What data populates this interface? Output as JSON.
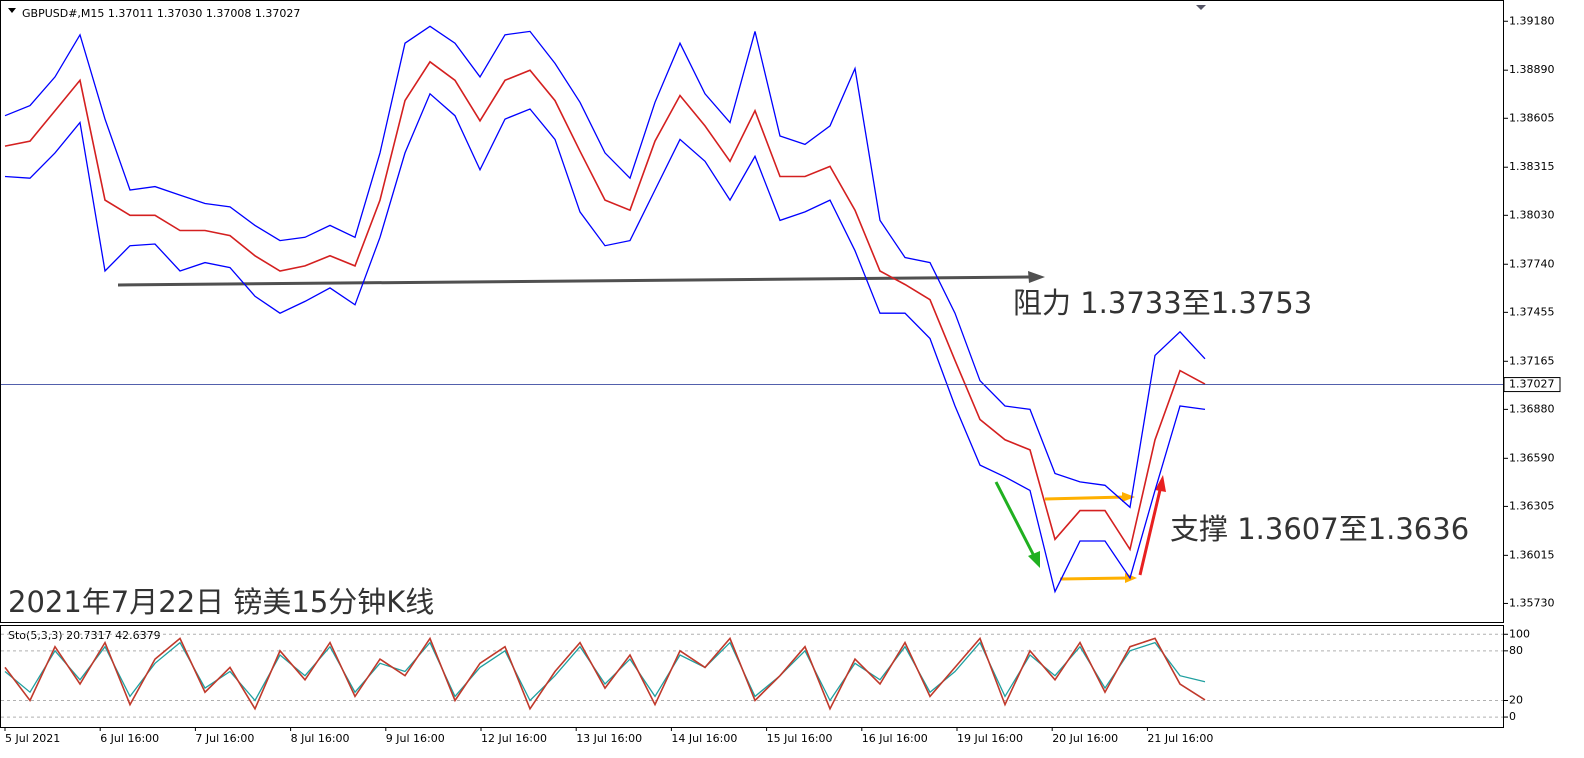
{
  "chart_data": [
    {
      "type": "line",
      "title": "GBPUSD#,M15  1.37011 1.37030 1.37008 1.37027",
      "ylim": [
        1.3562,
        1.393
      ],
      "yticks": [
        {
          "value": 1.3918,
          "label": "1.39180"
        },
        {
          "value": 1.3889,
          "label": "1.38890"
        },
        1.38605,
        1.38315,
        {
          "value": 1.3803,
          "label": "1.38030"
        },
        {
          "value": 1.3774,
          "label": "1.37740"
        },
        1.37455,
        1.37165,
        {
          "value": 1.3688,
          "label": "1.36880"
        },
        {
          "value": 1.3659,
          "label": "1.36590"
        },
        1.36305,
        1.36015,
        {
          "value": 1.3573,
          "label": "1.35730"
        }
      ],
      "grid": false,
      "last_price": 1.37027,
      "series": [
        {
          "color": "#0000ff",
          "values": [
            1.3862,
            1.3868,
            1.3885,
            1.391,
            1.386,
            1.3818,
            1.382,
            1.3815,
            1.381,
            1.3808,
            1.3797,
            1.3788,
            1.379,
            1.3797,
            1.379,
            1.384,
            1.3905,
            1.3915,
            1.3905,
            1.3885,
            1.391,
            1.3912,
            1.3893,
            1.387,
            1.384,
            1.3825,
            1.387,
            1.3905,
            1.3875,
            1.3858,
            1.3912,
            1.385,
            1.3845,
            1.3856,
            1.389,
            1.38,
            1.3778,
            1.3775,
            1.3745,
            1.3705,
            1.369,
            1.3688,
            1.365,
            1.3645,
            1.3643,
            1.363,
            1.372,
            1.3734,
            1.3718
          ]
        },
        {
          "color": "#0000ff",
          "values": [
            1.3826,
            1.3825,
            1.384,
            1.3858,
            1.377,
            1.3785,
            1.3786,
            1.377,
            1.3775,
            1.3772,
            1.3755,
            1.3745,
            1.3752,
            1.376,
            1.375,
            1.379,
            1.384,
            1.3875,
            1.3862,
            1.383,
            1.386,
            1.3866,
            1.3848,
            1.3805,
            1.3785,
            1.3788,
            1.3818,
            1.3848,
            1.3835,
            1.3812,
            1.3838,
            1.38,
            1.3805,
            1.3812,
            1.3782,
            1.3745,
            1.3745,
            1.373,
            1.369,
            1.3655,
            1.3648,
            1.364,
            1.358,
            1.361,
            1.361,
            1.3588,
            1.364,
            1.369,
            1.3688
          ]
        },
        {
          "color": "#d42020",
          "values": [
            1.3844,
            1.3847,
            1.3865,
            1.3883,
            1.3812,
            1.3803,
            1.3803,
            1.3794,
            1.3794,
            1.3791,
            1.3779,
            1.377,
            1.3773,
            1.3779,
            1.3773,
            1.3812,
            1.3871,
            1.3894,
            1.3883,
            1.3859,
            1.3883,
            1.3889,
            1.3871,
            1.3841,
            1.3812,
            1.3806,
            1.3847,
            1.3874,
            1.3856,
            1.3835,
            1.3865,
            1.3826,
            1.3826,
            1.3832,
            1.3806,
            1.377,
            1.3762,
            1.3753,
            1.3717,
            1.3682,
            1.367,
            1.3664,
            1.3611,
            1.3628,
            1.3628,
            1.3605,
            1.367,
            1.3711,
            1.3703
          ]
        }
      ],
      "annotations": [
        "阻力 1.3733至1.3753",
        "支撑 1.3607至1.3636"
      ],
      "caption": "2021年7月22日 镑美15分钟K线"
    },
    {
      "type": "line",
      "title": "Sto(5,3,3) 20.7317 42.6379",
      "ylim": [
        -12,
        110
      ],
      "yticks": [
        100,
        80,
        20,
        0
      ],
      "grid": true,
      "x_labels": [
        "5 Jul 2021",
        "6 Jul 16:00",
        "7 Jul 16:00",
        "8 Jul 16:00",
        "9 Jul 16:00",
        "12 Jul 16:00",
        "13 Jul 16:00",
        "14 Jul 16:00",
        "15 Jul 16:00",
        "16 Jul 16:00",
        "19 Jul 16:00",
        "20 Jul 16:00",
        "21 Jul 16:00"
      ],
      "series": [
        {
          "color": "#20a0a0",
          "values": [
            55,
            30,
            80,
            45,
            85,
            25,
            65,
            90,
            35,
            55,
            20,
            75,
            50,
            85,
            30,
            65,
            55,
            90,
            25,
            60,
            80,
            20,
            50,
            85,
            40,
            70,
            25,
            75,
            60,
            90,
            25,
            50,
            80,
            20,
            65,
            45,
            85,
            30,
            55,
            90,
            25,
            75,
            50,
            85,
            35,
            80,
            90,
            50,
            42.6379
          ]
        },
        {
          "color": "#c0392b",
          "values": [
            60,
            20,
            85,
            40,
            90,
            15,
            70,
            95,
            30,
            60,
            10,
            80,
            45,
            90,
            25,
            70,
            50,
            95,
            20,
            65,
            85,
            10,
            55,
            90,
            35,
            75,
            15,
            80,
            60,
            95,
            20,
            50,
            85,
            10,
            70,
            40,
            90,
            25,
            60,
            95,
            15,
            80,
            45,
            90,
            30,
            85,
            95,
            40,
            20.7317
          ]
        }
      ]
    }
  ]
}
